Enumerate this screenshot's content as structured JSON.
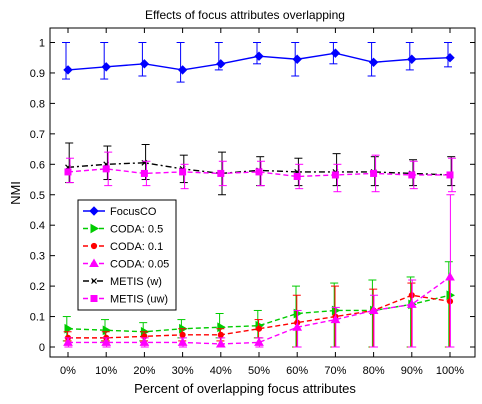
{
  "chart_data": {
    "type": "line",
    "title": "Effects of focus attributes overlapping",
    "xlabel": "Percent of overlapping focus attributes",
    "ylabel": "NMI",
    "categories": [
      "0%",
      "10%",
      "20%",
      "30%",
      "40%",
      "50%",
      "60%",
      "70%",
      "80%",
      "90%",
      "100%"
    ],
    "ylim": [
      -0.05,
      1.05
    ],
    "yticks": [
      "0",
      "0.1",
      "0.2",
      "0.3",
      "0.4",
      "0.5",
      "0.6",
      "0.7",
      "0.8",
      "0.9",
      "1"
    ],
    "grid": false,
    "legend_position": "center-left",
    "series": [
      {
        "name": "FocusCO",
        "color": "#0000ff",
        "marker": "diamond",
        "dash": "solid",
        "values": [
          0.91,
          0.92,
          0.93,
          0.91,
          0.93,
          0.955,
          0.945,
          0.965,
          0.935,
          0.945,
          0.95
        ],
        "err_low": [
          0.88,
          0.88,
          0.89,
          0.87,
          0.91,
          0.93,
          0.89,
          0.93,
          0.89,
          0.91,
          0.92
        ],
        "err_high": [
          1.0,
          1.0,
          1.0,
          1.0,
          1.0,
          1.0,
          1.0,
          1.0,
          1.0,
          1.0,
          1.0
        ]
      },
      {
        "name": "CODA: 0.5",
        "color": "#00cc00",
        "marker": "triangle-right",
        "dash": "dashed",
        "values": [
          0.06,
          0.055,
          0.05,
          0.06,
          0.065,
          0.07,
          0.11,
          0.12,
          0.12,
          0.14,
          0.17
        ],
        "err_low": [
          0.02,
          0.02,
          0.02,
          0.03,
          0.03,
          0.03,
          0.0,
          0.0,
          0.0,
          0.0,
          0.0
        ],
        "err_high": [
          0.1,
          0.09,
          0.08,
          0.09,
          0.11,
          0.12,
          0.2,
          0.21,
          0.22,
          0.23,
          0.28
        ]
      },
      {
        "name": "CODA: 0.1",
        "color": "#ff0000",
        "marker": "dot",
        "dash": "dashed",
        "values": [
          0.03,
          0.03,
          0.035,
          0.04,
          0.04,
          0.06,
          0.08,
          0.1,
          0.12,
          0.17,
          0.15
        ],
        "err_low": [
          0.02,
          0.02,
          0.02,
          0.02,
          0.02,
          0.03,
          0.0,
          0.0,
          0.0,
          0.0,
          0.0
        ],
        "err_high": [
          0.05,
          0.05,
          0.05,
          0.06,
          0.06,
          0.09,
          0.17,
          0.2,
          0.19,
          0.21,
          0.22
        ]
      },
      {
        "name": "CODA: 0.05",
        "color": "#ff00ff",
        "marker": "triangle-up",
        "dash": "dashed",
        "values": [
          0.015,
          0.015,
          0.015,
          0.015,
          0.01,
          0.015,
          0.065,
          0.09,
          0.12,
          0.14,
          0.23
        ],
        "err_low": [
          0.0,
          0.0,
          0.0,
          0.0,
          0.0,
          0.0,
          0.0,
          0.0,
          0.0,
          0.0,
          0.0
        ],
        "err_high": [
          0.03,
          0.03,
          0.03,
          0.03,
          0.03,
          0.03,
          0.12,
          0.13,
          0.17,
          0.22,
          0.5
        ]
      },
      {
        "name": "METIS (w)",
        "color": "#000000",
        "marker": "x",
        "dash": "dashdot",
        "values": [
          0.59,
          0.6,
          0.605,
          0.585,
          0.57,
          0.58,
          0.575,
          0.575,
          0.575,
          0.57,
          0.565
        ],
        "err_low": [
          0.54,
          0.55,
          0.55,
          0.54,
          0.5,
          0.53,
          0.53,
          0.53,
          0.53,
          0.53,
          0.53
        ],
        "err_high": [
          0.67,
          0.66,
          0.665,
          0.63,
          0.64,
          0.625,
          0.62,
          0.635,
          0.625,
          0.615,
          0.625
        ]
      },
      {
        "name": "METIS (uw)",
        "color": "#ff00ff",
        "marker": "square",
        "dash": "dashed",
        "values": [
          0.575,
          0.585,
          0.57,
          0.575,
          0.57,
          0.575,
          0.56,
          0.565,
          0.57,
          0.565,
          0.565
        ],
        "err_low": [
          0.54,
          0.53,
          0.53,
          0.52,
          0.53,
          0.53,
          0.52,
          0.51,
          0.51,
          0.52,
          0.51
        ],
        "err_high": [
          0.62,
          0.64,
          0.61,
          0.6,
          0.61,
          0.61,
          0.6,
          0.6,
          0.63,
          0.61,
          0.62
        ]
      }
    ]
  }
}
